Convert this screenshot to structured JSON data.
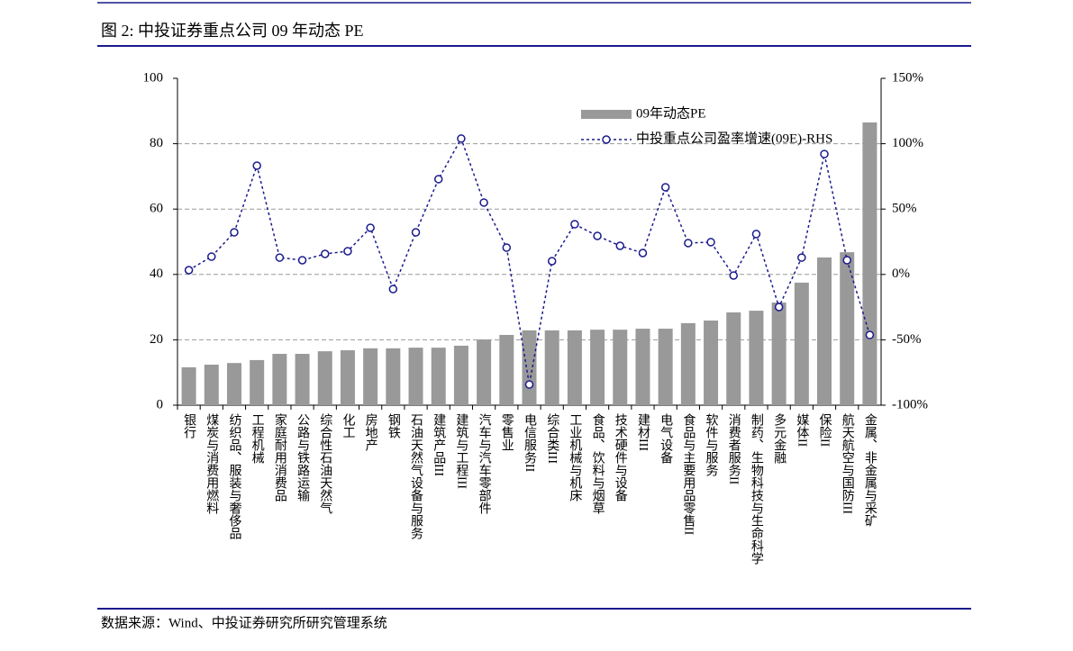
{
  "chart_data": {
    "type": "bar-line",
    "title": "图 2:  中投证券重点公司 09 年动态 PE",
    "source": "数据来源：Wind、中投证券研究所研究管理系统",
    "categories": [
      "银行",
      "煤炭与消费用燃料",
      "纺织品、服装与奢侈品",
      "工程机械",
      "家庭耐用消费品",
      "公路与铁路运输",
      "综合性石油天然气",
      "化工",
      "房地产",
      "钢铁",
      "石油天然气设备与服务",
      "建筑产品III",
      "建筑与工程III",
      "汽车与汽车零部件",
      "零售业",
      "电信服务II",
      "综合类III",
      "工业机械与机床",
      "食品、饮料与烟草",
      "技术硬件与设备",
      "建材III",
      "电气设备",
      "食品与主要用品零售II",
      "软件与服务",
      "消费者服务II",
      "制药、生物科技与生命科学",
      "多元金融",
      "媒体II",
      "保险II",
      "航天航空与国防III",
      "金属、非金属与采矿"
    ],
    "series": [
      {
        "name": "09年动态PE",
        "type": "bar",
        "color": "#999999",
        "values": [
          11.6,
          12.4,
          12.9,
          13.8,
          15.7,
          15.7,
          16.5,
          16.8,
          17.4,
          17.4,
          17.6,
          17.6,
          18.2,
          20.1,
          21.5,
          22.9,
          22.9,
          22.9,
          23.1,
          23.1,
          23.4,
          23.4,
          25.1,
          25.9,
          28.4,
          28.9,
          31.4,
          37.5,
          45.2,
          46.8,
          86.5
        ]
      },
      {
        "name": "中投重点公司盈率增速(09E)-RHS",
        "type": "line",
        "axis": "y2",
        "color": "#1a1a8c",
        "values": [
          3.3,
          13.6,
          32.2,
          83.2,
          12.9,
          10.9,
          15.7,
          17.8,
          35.7,
          -11.2,
          32.2,
          72.9,
          103.9,
          55,
          20.5,
          -84.2,
          10.2,
          38.4,
          29.5,
          21.9,
          16.4,
          66.7,
          24,
          24.7,
          -0.8,
          30.9,
          -24.9,
          12.9,
          92.1,
          10.9,
          -46.3
        ]
      }
    ],
    "ylim": [
      0,
      100
    ],
    "yticks": [
      0,
      20,
      40,
      60,
      80,
      100
    ],
    "y2lim": [
      -100,
      150
    ],
    "y2ticks": [
      {
        "value": -100,
        "label": "-100%"
      },
      {
        "value": -50,
        "label": "-50%"
      },
      {
        "value": 0,
        "label": "0%"
      },
      {
        "value": 50,
        "label": "50%"
      },
      {
        "value": 100,
        "label": "100%"
      },
      {
        "value": 150,
        "label": "150%"
      }
    ],
    "grid": true
  }
}
